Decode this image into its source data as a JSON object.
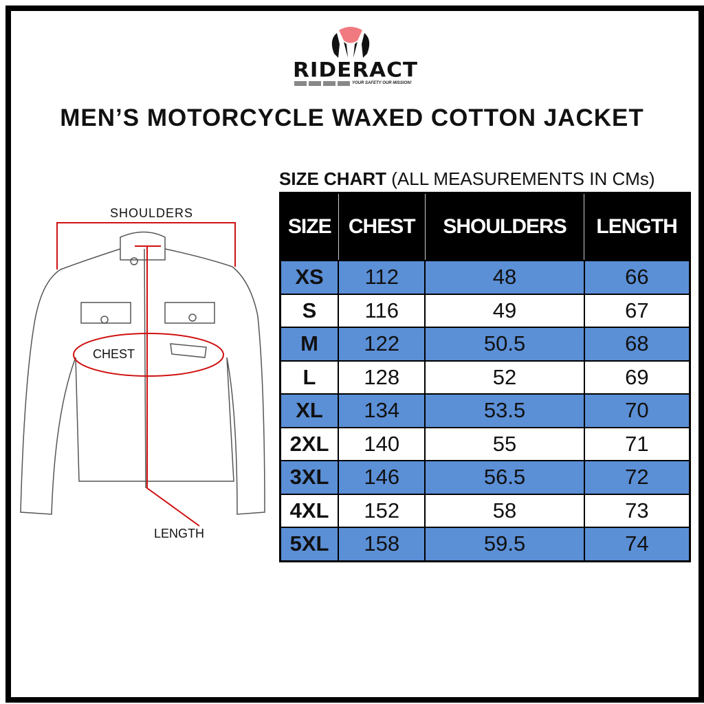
{
  "brand": {
    "name": "RIDERACT",
    "tagline": "YOUR SAFETY OUR MISSION!",
    "colors": {
      "logo_top": "#f07a80",
      "text": "#111111"
    }
  },
  "title": "MEN’S MOTORCYCLE WAXED COTTON JACKET",
  "size_chart": {
    "title_bold": "SIZE CHART",
    "title_note": "(ALL MEASUREMENTS IN CMs)",
    "headers": [
      "SIZE",
      "CHEST",
      "SHOULDERS",
      "LENGTH"
    ],
    "rows": [
      [
        "XS",
        "112",
        "48",
        "66"
      ],
      [
        "S",
        "116",
        "49",
        "67"
      ],
      [
        "M",
        "122",
        "50.5",
        "68"
      ],
      [
        "L",
        "128",
        "52",
        "69"
      ],
      [
        "XL",
        "134",
        "53.5",
        "70"
      ],
      [
        "2XL",
        "140",
        "55",
        "71"
      ],
      [
        "3XL",
        "146",
        "56.5",
        "72"
      ],
      [
        "4XL",
        "152",
        "58",
        "73"
      ],
      [
        "5XL",
        "158",
        "59.5",
        "74"
      ]
    ],
    "colors": {
      "header_bg": "#000000",
      "stripe": "#5b8fd6",
      "alt": "#ffffff"
    }
  },
  "diagram": {
    "shoulders_label": "SHOULDERS",
    "chest_label": "CHEST",
    "length_label": "LENGTH",
    "measure_color": "#d01010"
  }
}
